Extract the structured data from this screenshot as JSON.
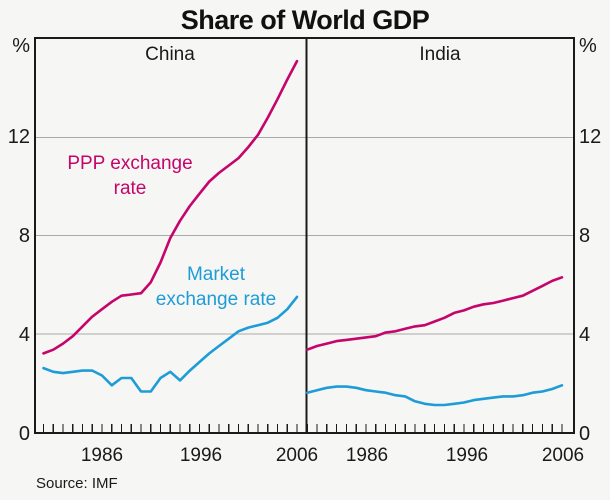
{
  "title": "Share of World GDP",
  "panels": [
    {
      "label": "China"
    },
    {
      "label": "India"
    }
  ],
  "axis": {
    "unit": "%",
    "yticks": [
      "0",
      "4",
      "8",
      "12"
    ],
    "gridlines": [
      4,
      8,
      12
    ],
    "ylim": [
      0,
      16
    ],
    "xticklabels": [
      "1986",
      "1996",
      "2006"
    ]
  },
  "annotations": {
    "ppp": [
      "PPP exchange",
      "rate"
    ],
    "market": [
      "Market",
      "exchange rate"
    ]
  },
  "source": "Source: IMF",
  "colors": {
    "ppp": "#C5056B",
    "market": "#1E9CD7",
    "grid": "#a9a9a9",
    "frame": "#1a1a1a"
  },
  "chart_data": [
    {
      "type": "line",
      "panel": "China",
      "xlabel": "",
      "ylabel": "%",
      "ylim": [
        0,
        16
      ],
      "grid": "horizontal at 4, 8, 12",
      "x": [
        1980,
        1981,
        1982,
        1983,
        1984,
        1985,
        1986,
        1987,
        1988,
        1989,
        1990,
        1991,
        1992,
        1993,
        1994,
        1995,
        1996,
        1997,
        1998,
        1999,
        2000,
        2001,
        2002,
        2003,
        2004,
        2005,
        2006
      ],
      "series": [
        {
          "name": "PPP exchange rate",
          "color_key": "ppp",
          "values": [
            3.2,
            3.35,
            3.6,
            3.9,
            4.3,
            4.7,
            5.0,
            5.3,
            5.55,
            5.6,
            5.65,
            6.1,
            6.9,
            7.9,
            8.6,
            9.2,
            9.7,
            10.2,
            10.55,
            10.85,
            11.15,
            11.6,
            12.1,
            12.8,
            13.55,
            14.35,
            15.1
          ]
        },
        {
          "name": "Market exchange rate",
          "color_key": "market",
          "values": [
            2.6,
            2.45,
            2.4,
            2.45,
            2.5,
            2.5,
            2.3,
            1.9,
            2.2,
            2.2,
            1.65,
            1.65,
            2.2,
            2.45,
            2.1,
            2.5,
            2.85,
            3.2,
            3.5,
            3.8,
            4.1,
            4.25,
            4.35,
            4.45,
            4.65,
            5.0,
            5.5
          ]
        }
      ]
    },
    {
      "type": "line",
      "panel": "India",
      "xlabel": "",
      "ylabel": "%",
      "ylim": [
        0,
        16
      ],
      "grid": "horizontal at 4, 8, 12",
      "x": [
        1980,
        1981,
        1982,
        1983,
        1984,
        1985,
        1986,
        1987,
        1988,
        1989,
        1990,
        1991,
        1992,
        1993,
        1994,
        1995,
        1996,
        1997,
        1998,
        1999,
        2000,
        2001,
        2002,
        2003,
        2004,
        2005,
        2006
      ],
      "series": [
        {
          "name": "PPP exchange rate",
          "color_key": "ppp",
          "values": [
            3.35,
            3.5,
            3.6,
            3.7,
            3.75,
            3.8,
            3.85,
            3.9,
            4.05,
            4.1,
            4.2,
            4.3,
            4.35,
            4.5,
            4.65,
            4.85,
            4.95,
            5.1,
            5.2,
            5.25,
            5.35,
            5.45,
            5.55,
            5.75,
            5.95,
            6.15,
            6.3
          ]
        },
        {
          "name": "Market exchange rate",
          "color_key": "market",
          "values": [
            1.6,
            1.7,
            1.8,
            1.85,
            1.85,
            1.8,
            1.7,
            1.65,
            1.6,
            1.5,
            1.45,
            1.25,
            1.15,
            1.1,
            1.1,
            1.15,
            1.2,
            1.3,
            1.35,
            1.4,
            1.45,
            1.45,
            1.5,
            1.6,
            1.65,
            1.75,
            1.9
          ]
        }
      ]
    }
  ]
}
